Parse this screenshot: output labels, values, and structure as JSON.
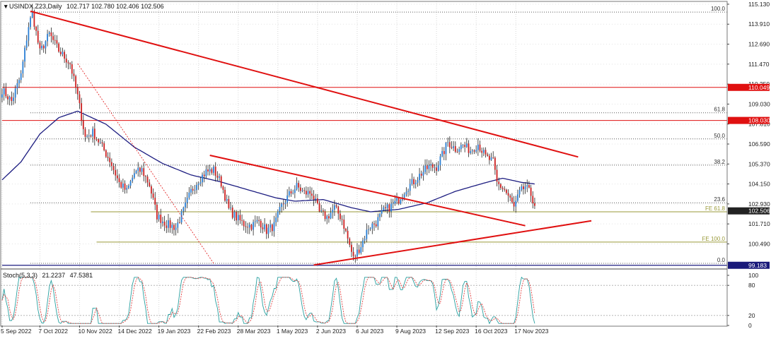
{
  "header": {
    "symbol_label": "USINDX.Z23,Daily",
    "ohlc": "102.717 102.780 102.406 102.506"
  },
  "indicator": {
    "label": "Stoch(5,3,3)",
    "k_value": "21.2237",
    "d_value": "47.5381",
    "levels": [
      "100",
      "80",
      "20",
      "0"
    ]
  },
  "price_axis": {
    "ticks": [
      "115.130",
      "113.910",
      "112.690",
      "111.470",
      "110.250",
      "109.030",
      "107.810",
      "106.590",
      "105.370",
      "104.150",
      "102.930",
      "101.710",
      "100.490"
    ]
  },
  "price_tags": [
    {
      "label": "110.049",
      "price": 110.049,
      "color": "#e01010"
    },
    {
      "label": "108.030",
      "price": 108.03,
      "color": "#e01010"
    },
    {
      "label": "102.506",
      "price": 102.506,
      "color": "#222222"
    },
    {
      "label": "99.183",
      "price": 99.183,
      "color": "#1a1a7a"
    }
  ],
  "fib_labels": [
    {
      "label": "100.0",
      "price": 114.65
    },
    {
      "label": "61.8",
      "price": 108.5
    },
    {
      "label": "50.0",
      "price": 106.9
    },
    {
      "label": "38.2",
      "price": 105.3
    },
    {
      "label": "23.6",
      "price": 103.0
    },
    {
      "label": "0.0",
      "price": 99.3
    },
    {
      "label": "FE 61.8",
      "price": 102.45
    },
    {
      "label": "FE 100.0",
      "price": 100.6
    }
  ],
  "time_axis": {
    "ticks": [
      "5 Sep 2022",
      "7 Oct 2022",
      "10 Nov 2022",
      "14 Dec 2022",
      "19 Jan 2023",
      "22 Feb 2023",
      "28 Mar 2023",
      "1 May 2023",
      "2 Jun 2023",
      "6 Jul 2023",
      "9 Aug 2023",
      "12 Sep 2023",
      "16 Oct 2023",
      "17 Nov 2023"
    ]
  },
  "colors": {
    "bull": "#2a7fd4",
    "bear": "#cc2020",
    "wick": "#222222",
    "moving_average": "#1c1c80",
    "trendline": "#e01010",
    "fib_level": "#555555",
    "fe_level": "#9a9a3a",
    "stoch_k": "#2aa0a0",
    "stoch_d": "#e04040"
  },
  "chart_data": {
    "type": "candlestick",
    "price_range": [
      99.0,
      115.3
    ],
    "stoch_range": [
      0,
      100
    ],
    "waypoints": [
      {
        "i": 0,
        "p": 109.9
      },
      {
        "i": 5,
        "p": 109.2
      },
      {
        "i": 10,
        "p": 110.8
      },
      {
        "i": 14,
        "p": 113.8
      },
      {
        "i": 16,
        "p": 114.6
      },
      {
        "i": 20,
        "p": 112.2
      },
      {
        "i": 25,
        "p": 113.3
      },
      {
        "i": 30,
        "p": 112.3
      },
      {
        "i": 36,
        "p": 111.5
      },
      {
        "i": 40,
        "p": 109.5
      },
      {
        "i": 44,
        "p": 107.0
      },
      {
        "i": 48,
        "p": 107.3
      },
      {
        "i": 52,
        "p": 106.6
      },
      {
        "i": 57,
        "p": 105.6
      },
      {
        "i": 62,
        "p": 104.2
      },
      {
        "i": 66,
        "p": 103.7
      },
      {
        "i": 70,
        "p": 104.8
      },
      {
        "i": 74,
        "p": 105.0
      },
      {
        "i": 78,
        "p": 104.1
      },
      {
        "i": 82,
        "p": 102.2
      },
      {
        "i": 87,
        "p": 101.7
      },
      {
        "i": 92,
        "p": 101.5
      },
      {
        "i": 96,
        "p": 102.5
      },
      {
        "i": 100,
        "p": 103.7
      },
      {
        "i": 104,
        "p": 104.4
      },
      {
        "i": 108,
        "p": 104.9
      },
      {
        "i": 112,
        "p": 105.0
      },
      {
        "i": 116,
        "p": 104.2
      },
      {
        "i": 120,
        "p": 102.6
      },
      {
        "i": 124,
        "p": 102.1
      },
      {
        "i": 128,
        "p": 101.7
      },
      {
        "i": 132,
        "p": 101.6
      },
      {
        "i": 136,
        "p": 101.9
      },
      {
        "i": 140,
        "p": 101.3
      },
      {
        "i": 144,
        "p": 101.6
      },
      {
        "i": 148,
        "p": 102.8
      },
      {
        "i": 152,
        "p": 103.5
      },
      {
        "i": 156,
        "p": 104.0
      },
      {
        "i": 160,
        "p": 103.6
      },
      {
        "i": 164,
        "p": 103.6
      },
      {
        "i": 168,
        "p": 102.4
      },
      {
        "i": 172,
        "p": 102.1
      },
      {
        "i": 176,
        "p": 102.7
      },
      {
        "i": 180,
        "p": 102.0
      },
      {
        "i": 184,
        "p": 100.4
      },
      {
        "i": 186,
        "p": 99.6
      },
      {
        "i": 190,
        "p": 100.4
      },
      {
        "i": 194,
        "p": 101.5
      },
      {
        "i": 198,
        "p": 101.8
      },
      {
        "i": 202,
        "p": 102.5
      },
      {
        "i": 206,
        "p": 102.8
      },
      {
        "i": 210,
        "p": 103.2
      },
      {
        "i": 214,
        "p": 103.9
      },
      {
        "i": 218,
        "p": 104.3
      },
      {
        "i": 222,
        "p": 104.8
      },
      {
        "i": 226,
        "p": 105.2
      },
      {
        "i": 230,
        "p": 105.2
      },
      {
        "i": 233,
        "p": 105.9
      },
      {
        "i": 236,
        "p": 106.7
      },
      {
        "i": 240,
        "p": 106.3
      },
      {
        "i": 244,
        "p": 106.5
      },
      {
        "i": 248,
        "p": 106.2
      },
      {
        "i": 252,
        "p": 106.6
      },
      {
        "i": 256,
        "p": 105.8
      },
      {
        "i": 260,
        "p": 105.5
      },
      {
        "i": 262,
        "p": 104.2
      },
      {
        "i": 266,
        "p": 103.8
      },
      {
        "i": 269,
        "p": 103.2
      },
      {
        "i": 271,
        "p": 102.7
      },
      {
        "i": 274,
        "p": 103.6
      },
      {
        "i": 277,
        "p": 104.0
      },
      {
        "i": 280,
        "p": 103.5
      },
      {
        "i": 282,
        "p": 102.9
      }
    ],
    "moving_average": [
      {
        "i": 0,
        "p": 104.4
      },
      {
        "i": 10,
        "p": 105.5
      },
      {
        "i": 20,
        "p": 107.2
      },
      {
        "i": 30,
        "p": 108.2
      },
      {
        "i": 40,
        "p": 108.6
      },
      {
        "i": 55,
        "p": 107.8
      },
      {
        "i": 70,
        "p": 106.4
      },
      {
        "i": 85,
        "p": 105.4
      },
      {
        "i": 100,
        "p": 104.7
      },
      {
        "i": 115,
        "p": 104.3
      },
      {
        "i": 130,
        "p": 103.8
      },
      {
        "i": 145,
        "p": 103.3
      },
      {
        "i": 155,
        "p": 103.1
      },
      {
        "i": 170,
        "p": 103.2
      },
      {
        "i": 185,
        "p": 102.7
      },
      {
        "i": 195,
        "p": 102.45
      },
      {
        "i": 210,
        "p": 102.6
      },
      {
        "i": 225,
        "p": 103.0
      },
      {
        "i": 240,
        "p": 103.7
      },
      {
        "i": 255,
        "p": 104.2
      },
      {
        "i": 265,
        "p": 104.5
      },
      {
        "i": 275,
        "p": 104.25
      },
      {
        "i": 282,
        "p": 104.15
      }
    ],
    "trendlines": [
      {
        "from": {
          "i": 15,
          "p": 114.7
        },
        "to": {
          "i": 305,
          "p": 105.8
        }
      },
      {
        "from": {
          "i": 110,
          "p": 105.9
        },
        "to": {
          "i": 277,
          "p": 101.6
        }
      },
      {
        "from": {
          "i": 165,
          "p": 99.2
        },
        "to": {
          "i": 312,
          "p": 101.9
        }
      }
    ],
    "dotted_trendline": {
      "from": {
        "i": 40,
        "p": 111.5
      },
      "to": {
        "i": 112,
        "p": 99.3
      }
    },
    "horizontal_levels": [
      {
        "price": 110.049,
        "style": "solid",
        "start_i": 0
      },
      {
        "price": 108.03,
        "style": "solid",
        "start_i": 0
      },
      {
        "price": 114.65,
        "style": "dotted",
        "start_i": 15
      },
      {
        "price": 108.5,
        "style": "dotted",
        "start_i": 15
      },
      {
        "price": 106.9,
        "style": "dotted",
        "start_i": 15
      },
      {
        "price": 105.3,
        "style": "dotted",
        "start_i": 15
      },
      {
        "price": 103.0,
        "style": "dotted",
        "start_i": 15
      },
      {
        "price": 102.45,
        "style": "fe",
        "start_i": 47
      },
      {
        "price": 100.6,
        "style": "fe",
        "start_i": 50
      },
      {
        "price": 99.3,
        "style": "dotted",
        "start_i": 15
      },
      {
        "price": 99.183,
        "style": "blue",
        "start_i": 0
      }
    ],
    "n_bars": 283
  }
}
